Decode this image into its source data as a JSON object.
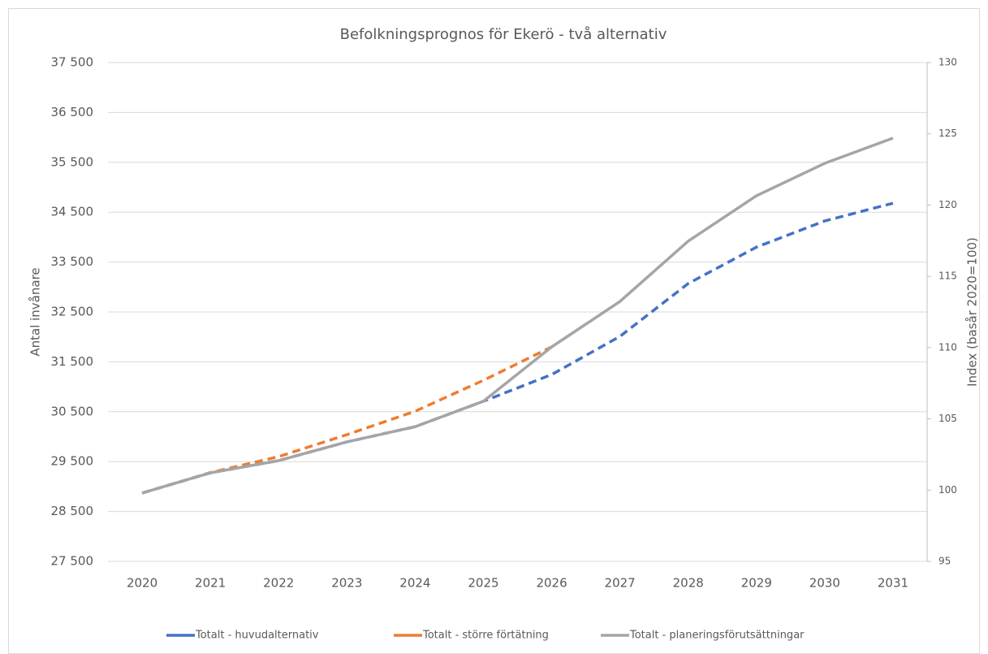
{
  "chart_data": {
    "type": "line",
    "title": "Befolkningsprognos för Ekerö - två alternativ",
    "ylabel": "Antal invånare",
    "y2label": "Index (basår 2020=100)",
    "categories": [
      "2020",
      "2021",
      "2022",
      "2023",
      "2024",
      "2025",
      "2026",
      "2027",
      "2028",
      "2029",
      "2030",
      "2031"
    ],
    "series": [
      {
        "name": "Totalt - huvudalternativ",
        "color": "#4472c4",
        "dashed": true,
        "values": [
          28870,
          29275,
          29520,
          29895,
          30200,
          30710,
          31245,
          32010,
          33070,
          33800,
          34325,
          34680
        ]
      },
      {
        "name": "Totalt - större förtätning",
        "color": "#ed7d31",
        "dashed": true,
        "values": [
          28870,
          29280,
          29600,
          30040,
          30510,
          31130,
          31800,
          null,
          null,
          null,
          null,
          null
        ]
      },
      {
        "name": "Totalt - planeringsförutsättningar",
        "color": "#a5a5a5",
        "dashed": false,
        "values": [
          28870,
          29275,
          29520,
          29895,
          30200,
          30710,
          31800,
          32710,
          33920,
          34830,
          35480,
          35985
        ]
      }
    ],
    "ylim": [
      27500,
      37500
    ],
    "yticks": [
      {
        "value": 27500,
        "label": "27 500"
      },
      {
        "value": 28500,
        "label": "28 500"
      },
      {
        "value": 29500,
        "label": "29 500"
      },
      {
        "value": 30500,
        "label": "30 500"
      },
      {
        "value": 31500,
        "label": "31 500"
      },
      {
        "value": 32500,
        "label": "32 500"
      },
      {
        "value": 33500,
        "label": "33 500"
      },
      {
        "value": 34500,
        "label": "34 500"
      },
      {
        "value": 35500,
        "label": "35 500"
      },
      {
        "value": 36500,
        "label": "36 500"
      },
      {
        "value": 37500,
        "label": "37 500"
      }
    ],
    "y2lim": [
      95,
      130
    ],
    "y2ticks": [
      95,
      100,
      105,
      110,
      115,
      120,
      125,
      130
    ],
    "grid": true,
    "legend": "bottom"
  }
}
